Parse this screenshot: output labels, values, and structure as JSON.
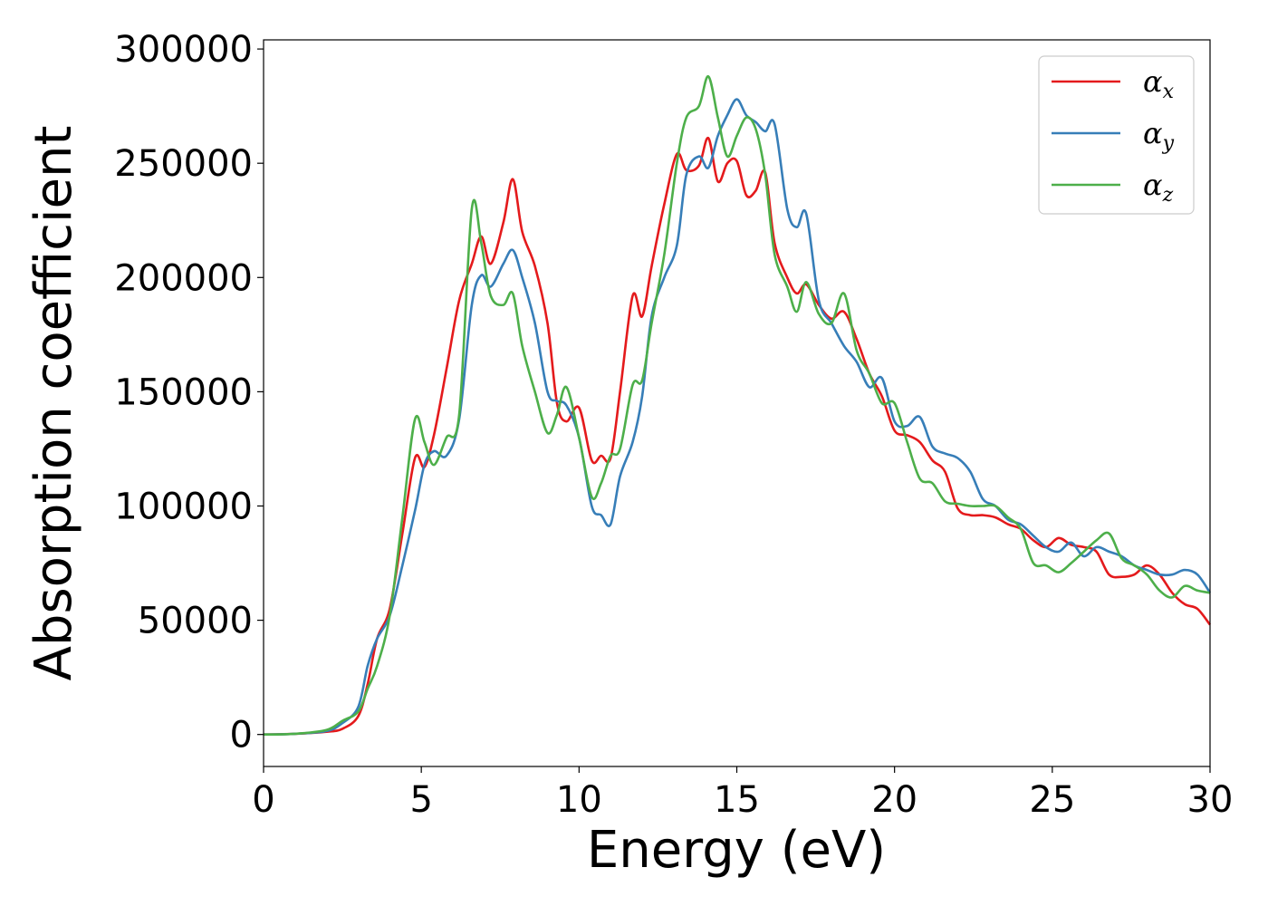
{
  "chart_data": {
    "type": "line",
    "title": "",
    "xlabel": "Energy (eV)",
    "ylabel": "Absorption coefficient",
    "xlim": [
      0,
      30
    ],
    "ylim": [
      -14000,
      304000
    ],
    "xticks": [
      0,
      5,
      10,
      15,
      20,
      25,
      30
    ],
    "xtick_labels": [
      "0",
      "5",
      "10",
      "15",
      "20",
      "25",
      "30"
    ],
    "yticks": [
      0,
      50000,
      100000,
      150000,
      200000,
      250000,
      300000
    ],
    "ytick_labels": [
      "0",
      "50000",
      "100000",
      "150000",
      "200000",
      "250000",
      "300000"
    ],
    "grid": false,
    "legend_position": "top-right",
    "series": [
      {
        "name": "α_x",
        "legend_symbol": "α",
        "legend_sub": "x",
        "color": "#e41a1c",
        "x": [
          0,
          1,
          2,
          2.5,
          3,
          3.3,
          3.6,
          4,
          4.4,
          4.8,
          5.1,
          5.4,
          5.8,
          6.2,
          6.6,
          6.9,
          7.2,
          7.6,
          7.9,
          8.2,
          8.6,
          9,
          9.3,
          9.6,
          10,
          10.4,
          10.7,
          11,
          11.3,
          11.7,
          12,
          12.3,
          12.7,
          13.1,
          13.4,
          13.8,
          14.1,
          14.4,
          14.7,
          15,
          15.3,
          15.6,
          15.9,
          16.2,
          16.6,
          16.9,
          17.2,
          17.6,
          18,
          18.4,
          18.8,
          19.2,
          19.6,
          20,
          20.4,
          20.8,
          21.2,
          21.6,
          22,
          22.4,
          22.8,
          23.2,
          23.6,
          24,
          24.4,
          24.8,
          25.2,
          25.6,
          26,
          26.4,
          26.8,
          27.2,
          27.6,
          28,
          28.4,
          28.8,
          29.2,
          29.6,
          30
        ],
        "y": [
          0,
          300,
          1200,
          2500,
          8000,
          22000,
          42000,
          55000,
          88000,
          121000,
          117000,
          131000,
          160000,
          190000,
          206000,
          218000,
          206000,
          224000,
          243000,
          220000,
          205000,
          180000,
          145000,
          137000,
          143000,
          120000,
          122000,
          121000,
          150000,
          192000,
          183000,
          205000,
          232000,
          254000,
          247000,
          249000,
          261000,
          242000,
          250000,
          251000,
          236000,
          238000,
          246000,
          215000,
          200000,
          193000,
          197000,
          188000,
          182000,
          185000,
          173000,
          158000,
          148000,
          133000,
          131000,
          128000,
          120000,
          115000,
          99000,
          96000,
          96000,
          95000,
          92000,
          90000,
          85000,
          82000,
          86000,
          83000,
          82000,
          80000,
          70000,
          69000,
          70000,
          74000,
          70000,
          62000,
          57000,
          55000,
          48000
        ]
      },
      {
        "name": "α_y",
        "legend_symbol": "α",
        "legend_sub": "y",
        "color": "#377eb8",
        "x": [
          0,
          1,
          2,
          2.5,
          3,
          3.3,
          3.6,
          4,
          4.4,
          4.8,
          5.1,
          5.4,
          5.8,
          6.2,
          6.6,
          6.9,
          7.2,
          7.6,
          7.9,
          8.2,
          8.6,
          9,
          9.3,
          9.6,
          10,
          10.4,
          10.7,
          11,
          11.3,
          11.7,
          12,
          12.3,
          12.7,
          13.1,
          13.4,
          13.8,
          14.1,
          14.4,
          14.7,
          15,
          15.3,
          15.6,
          15.9,
          16.2,
          16.6,
          16.9,
          17.2,
          17.6,
          18,
          18.4,
          18.8,
          19.2,
          19.6,
          20,
          20.4,
          20.8,
          21.2,
          21.6,
          22,
          22.4,
          22.8,
          23.2,
          23.6,
          24,
          24.4,
          24.8,
          25.2,
          25.6,
          26,
          26.4,
          26.8,
          27.2,
          27.6,
          28,
          28.4,
          28.8,
          29.2,
          29.6,
          30
        ],
        "y": [
          0,
          300,
          1500,
          5000,
          12000,
          30000,
          42000,
          52000,
          74000,
          98000,
          118000,
          124000,
          122000,
          138000,
          188000,
          201000,
          196000,
          206000,
          212000,
          200000,
          180000,
          150000,
          146000,
          144000,
          130000,
          100000,
          96000,
          92000,
          113000,
          128000,
          148000,
          183000,
          200000,
          214000,
          245000,
          253000,
          248000,
          262000,
          271000,
          278000,
          271000,
          268000,
          264000,
          267000,
          230000,
          222000,
          228000,
          190000,
          180000,
          170000,
          163000,
          152000,
          156000,
          137000,
          135000,
          139000,
          126000,
          123000,
          121000,
          115000,
          103000,
          100000,
          94000,
          92000,
          87000,
          82000,
          80000,
          84000,
          78000,
          82000,
          80000,
          78000,
          74000,
          72000,
          70000,
          70000,
          72000,
          70000,
          62000
        ]
      },
      {
        "name": "α_z",
        "legend_symbol": "α",
        "legend_sub": "z",
        "color": "#4daf4a",
        "x": [
          0,
          1,
          2,
          2.5,
          3,
          3.3,
          3.6,
          4,
          4.4,
          4.8,
          5.1,
          5.4,
          5.8,
          6.2,
          6.6,
          6.9,
          7.2,
          7.6,
          7.9,
          8.2,
          8.6,
          9,
          9.3,
          9.6,
          10,
          10.4,
          10.7,
          11,
          11.3,
          11.7,
          12,
          12.3,
          12.7,
          13.1,
          13.4,
          13.8,
          14.1,
          14.4,
          14.7,
          15,
          15.3,
          15.6,
          15.9,
          16.2,
          16.6,
          16.9,
          17.2,
          17.6,
          18,
          18.4,
          18.8,
          19.2,
          19.6,
          20,
          20.4,
          20.8,
          21.2,
          21.6,
          22,
          22.4,
          22.8,
          23.2,
          23.6,
          24,
          24.4,
          24.8,
          25.2,
          25.6,
          26,
          26.4,
          26.8,
          27.2,
          27.6,
          28,
          28.4,
          28.8,
          29.2,
          29.6,
          30
        ],
        "y": [
          0,
          300,
          2000,
          6000,
          10000,
          20000,
          30000,
          52000,
          95000,
          138000,
          128000,
          118000,
          130000,
          140000,
          230000,
          215000,
          192000,
          188000,
          193000,
          170000,
          150000,
          132000,
          140000,
          152000,
          130000,
          104000,
          110000,
          122000,
          125000,
          153000,
          155000,
          180000,
          210000,
          250000,
          270000,
          275000,
          288000,
          270000,
          253000,
          262000,
          270000,
          265000,
          245000,
          210000,
          196000,
          185000,
          198000,
          184000,
          180000,
          193000,
          168000,
          158000,
          145000,
          145000,
          128000,
          112000,
          110000,
          102000,
          101000,
          100000,
          100000,
          100000,
          95000,
          90000,
          75000,
          74000,
          71000,
          75000,
          80000,
          85000,
          88000,
          77000,
          74000,
          70000,
          63000,
          60000,
          65000,
          63000,
          62000
        ]
      }
    ]
  }
}
